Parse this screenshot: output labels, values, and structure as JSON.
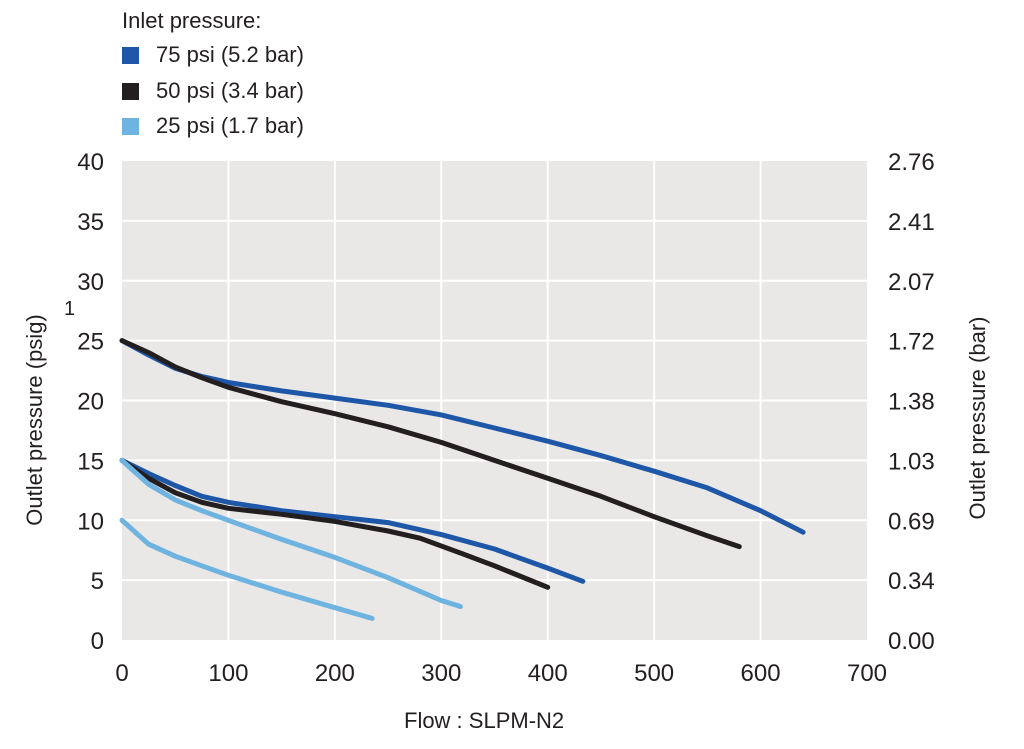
{
  "chart_data": {
    "type": "line",
    "legend_title": "Inlet pressure:",
    "legend_placement": "top-left",
    "grid": true,
    "marker_text": "1",
    "xlabel": "Flow : SLPM-N2",
    "ylabel_left": "Outlet pressure (psig)",
    "ylabel_right": "Outlet pressure (bar)",
    "xlim": [
      0,
      700
    ],
    "ylim": [
      0,
      40
    ],
    "x_ticks": [
      "0",
      "100",
      "200",
      "300",
      "400",
      "500",
      "600",
      "700"
    ],
    "y_ticks_left": [
      "0",
      "5",
      "10",
      "15",
      "20",
      "25",
      "30",
      "35",
      "40"
    ],
    "y_ticks_right": [
      "0.00",
      "0.34",
      "0.69",
      "1.03",
      "1.38",
      "1.72",
      "2.07",
      "2.41",
      "2.76"
    ],
    "legend": [
      {
        "label": "75 psi (5.2 bar)",
        "color": "#1f57a8"
      },
      {
        "label": "50 psi (3.4 bar)",
        "color": "#231f20"
      },
      {
        "label": "25 psi (1.7 bar)",
        "color": "#6fb3e0"
      }
    ],
    "series": [
      {
        "name": "75 psi (5.2 bar)",
        "color": "#1f57a8",
        "points": [
          [
            0,
            25
          ],
          [
            25,
            23.8
          ],
          [
            50,
            22.7
          ],
          [
            75,
            22
          ],
          [
            100,
            21.5
          ],
          [
            150,
            20.8
          ],
          [
            200,
            20.2
          ],
          [
            250,
            19.6
          ],
          [
            300,
            18.8
          ],
          [
            350,
            17.7
          ],
          [
            400,
            16.6
          ],
          [
            450,
            15.4
          ],
          [
            500,
            14.1
          ],
          [
            550,
            12.7
          ],
          [
            600,
            10.8
          ],
          [
            640,
            9
          ]
        ]
      },
      {
        "name": "50 psi (3.4 bar)",
        "color": "#231f20",
        "points": [
          [
            0,
            25
          ],
          [
            25,
            24
          ],
          [
            50,
            22.8
          ],
          [
            75,
            21.9
          ],
          [
            100,
            21.1
          ],
          [
            150,
            19.9
          ],
          [
            200,
            18.9
          ],
          [
            250,
            17.8
          ],
          [
            300,
            16.5
          ],
          [
            350,
            15
          ],
          [
            400,
            13.5
          ],
          [
            450,
            12
          ],
          [
            500,
            10.3
          ],
          [
            550,
            8.7
          ],
          [
            580,
            7.8
          ]
        ]
      },
      {
        "name": "75 psi (5.2 bar)",
        "color": "#1f57a8",
        "points": [
          [
            0,
            15
          ],
          [
            25,
            13.9
          ],
          [
            50,
            12.9
          ],
          [
            75,
            12
          ],
          [
            100,
            11.5
          ],
          [
            150,
            10.8
          ],
          [
            200,
            10.3
          ],
          [
            250,
            9.8
          ],
          [
            300,
            8.8
          ],
          [
            350,
            7.6
          ],
          [
            400,
            6
          ],
          [
            433,
            4.9
          ]
        ]
      },
      {
        "name": "50 psi (3.4 bar)",
        "color": "#231f20",
        "points": [
          [
            0,
            15
          ],
          [
            25,
            13.5
          ],
          [
            50,
            12.3
          ],
          [
            75,
            11.5
          ],
          [
            100,
            11
          ],
          [
            150,
            10.5
          ],
          [
            200,
            9.9
          ],
          [
            250,
            9.1
          ],
          [
            280,
            8.5
          ],
          [
            320,
            7.2
          ],
          [
            350,
            6.2
          ],
          [
            400,
            4.4
          ]
        ]
      },
      {
        "name": "25 psi (1.7 bar)",
        "color": "#6fb3e0",
        "points": [
          [
            0,
            15
          ],
          [
            10,
            14.2
          ],
          [
            25,
            13
          ],
          [
            50,
            11.7
          ],
          [
            75,
            10.8
          ],
          [
            100,
            10
          ],
          [
            150,
            8.4
          ],
          [
            200,
            6.9
          ],
          [
            250,
            5.2
          ],
          [
            300,
            3.3
          ],
          [
            318,
            2.8
          ]
        ]
      },
      {
        "name": "25 psi (1.7 bar)",
        "color": "#6fb3e0",
        "points": [
          [
            0,
            10
          ],
          [
            10,
            9.2
          ],
          [
            25,
            8
          ],
          [
            50,
            7
          ],
          [
            75,
            6.2
          ],
          [
            100,
            5.4
          ],
          [
            150,
            4
          ],
          [
            200,
            2.7
          ],
          [
            235,
            1.8
          ]
        ]
      }
    ]
  }
}
